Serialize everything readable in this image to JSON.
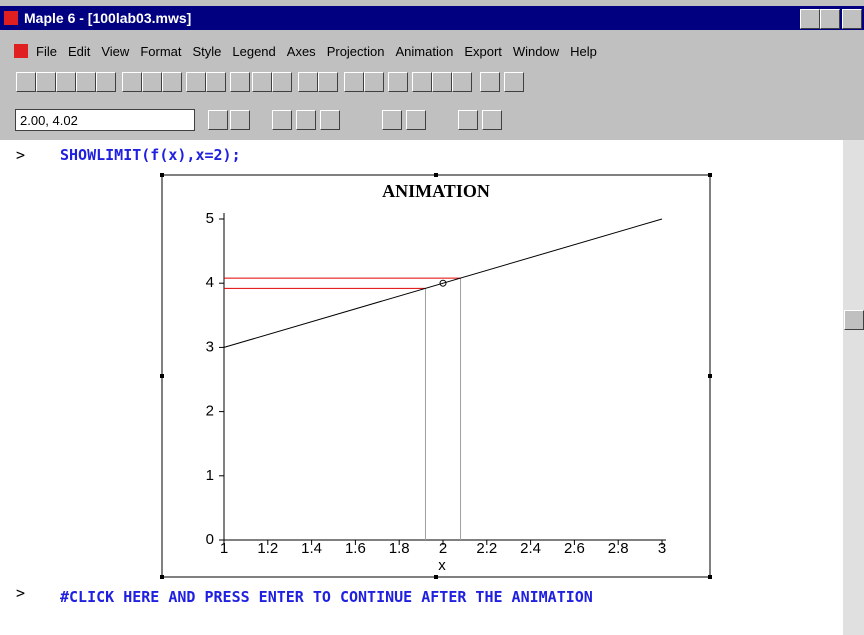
{
  "window": {
    "title": "Maple 6  - [100lab03.mws]"
  },
  "menu": [
    "File",
    "Edit",
    "View",
    "Format",
    "Style",
    "Legend",
    "Axes",
    "Projection",
    "Animation",
    "Export",
    "Window",
    "Help"
  ],
  "toolbar": {
    "coordinates": "2.00, 4.02"
  },
  "worksheet": {
    "prompts": [
      ">",
      ">"
    ],
    "command": "SHOWLIMIT(f(x),x=2);",
    "comment": "#CLICK HERE AND PRESS ENTER TO CONTINUE AFTER THE ANIMATION"
  },
  "chart_data": {
    "type": "line",
    "title": "ANIMATION",
    "x_label": "x",
    "x": [
      1,
      3
    ],
    "values": [
      3,
      5
    ],
    "color": "#000000",
    "bounds": {
      "x": [
        1.92,
        2.08
      ],
      "y": [
        3.92,
        4.08
      ],
      "y_color": "#e00000",
      "x_color": "#a0a0a0"
    },
    "point": [
      2,
      4
    ],
    "xlim": [
      1,
      3
    ],
    "xticks": [
      1,
      1.2,
      1.4,
      1.6,
      1.8,
      2,
      2.2,
      2.4,
      2.6,
      2.8,
      3
    ],
    "ylim": [
      0,
      5
    ],
    "yticks": [
      0,
      1,
      2,
      3,
      4,
      5
    ],
    "grid": false
  }
}
